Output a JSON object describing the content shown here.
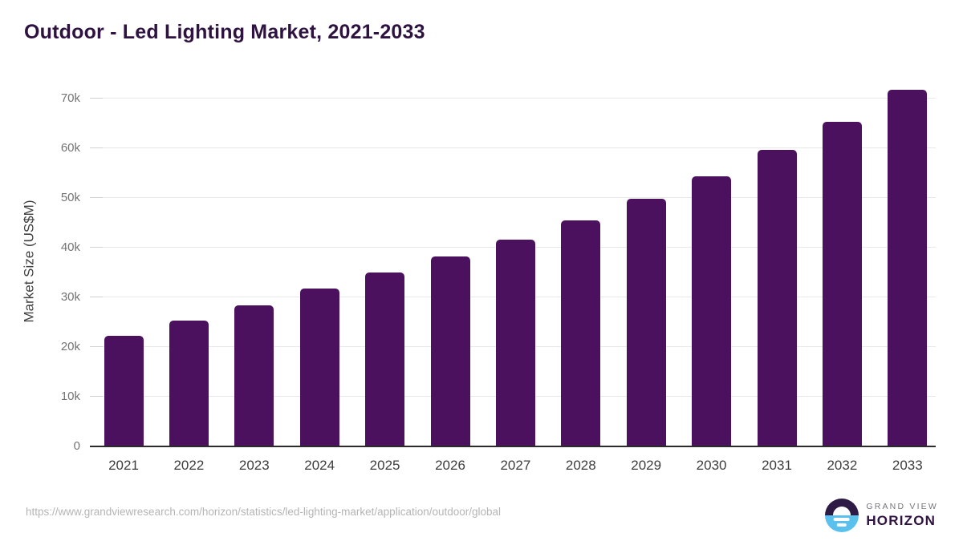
{
  "chart_data": {
    "type": "bar",
    "title": "Outdoor - Led Lighting Market, 2021-2033",
    "categories": [
      "2021",
      "2022",
      "2023",
      "2024",
      "2025",
      "2026",
      "2027",
      "2028",
      "2029",
      "2030",
      "2031",
      "2032",
      "2033"
    ],
    "values": [
      22300,
      25400,
      28400,
      31800,
      35000,
      38200,
      41600,
      45400,
      49900,
      54300,
      59600,
      65300,
      71800
    ],
    "xlabel": "",
    "ylabel": "Market Size (US$M)",
    "ylim": [
      0,
      74500
    ],
    "ytick_step": 10000,
    "ytick_labels": [
      "0",
      "10k",
      "20k",
      "30k",
      "40k",
      "50k",
      "60k",
      "70k"
    ],
    "grid": "horizontal",
    "legend": "none",
    "bar_color": "#4b105e"
  },
  "footer": {
    "source_url": "https://www.grandviewresearch.com/horizon/statistics/led-lighting-market/application/outdoor/global",
    "logo": {
      "icon": "sunrise-circle-icon",
      "top_text": "GRAND VIEW",
      "bottom_text": "HORIZON",
      "icon_top_color": "#2d1b45",
      "icon_bottom_color": "#5ac1ef"
    }
  },
  "colors": {
    "title_text": "#2e1240",
    "bar_fill": "#4b105e",
    "axis_line": "#2b2b2b",
    "gridline": "#e8e8e8",
    "y_tick_label": "#737373",
    "x_tick_label": "#3d3d3d",
    "url_text": "#b5b5b5"
  }
}
